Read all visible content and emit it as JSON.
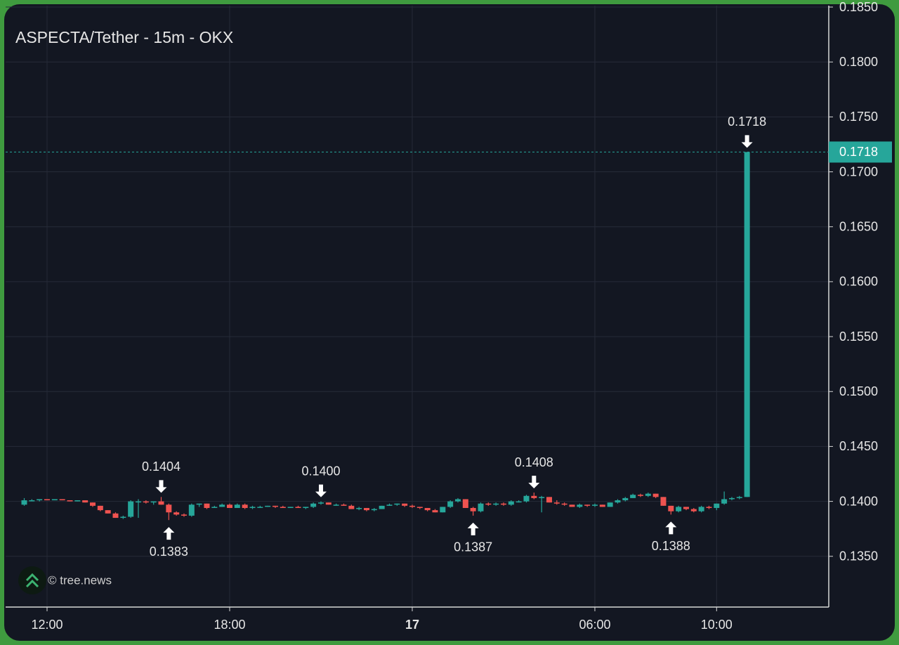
{
  "chart_data": {
    "type": "candlestick",
    "title": "ASPECTA/Tether - 15m - OKX",
    "watermark": "© tree.news",
    "x": [
      "11:15",
      "11:30",
      "11:45",
      "12:00",
      "12:15",
      "12:30",
      "12:45",
      "13:00",
      "13:15",
      "13:30",
      "13:45",
      "14:00",
      "14:15",
      "14:30",
      "14:45",
      "15:00",
      "15:15",
      "15:30",
      "15:45",
      "16:00",
      "16:15",
      "16:30",
      "16:45",
      "17:00",
      "17:15",
      "17:30",
      "17:45",
      "18:00",
      "18:15",
      "18:30",
      "18:45",
      "19:00",
      "19:15",
      "19:30",
      "19:45",
      "20:00",
      "20:15",
      "20:30",
      "20:45",
      "21:00",
      "21:15",
      "21:30",
      "21:45",
      "22:00",
      "22:15",
      "22:30",
      "22:45",
      "23:00",
      "23:15",
      "23:30",
      "23:45",
      "00:00",
      "00:15",
      "00:30",
      "00:45",
      "01:00",
      "01:15",
      "01:30",
      "01:45",
      "02:00",
      "02:15",
      "02:30",
      "02:45",
      "03:00",
      "03:15",
      "03:30",
      "03:45",
      "04:00",
      "04:15",
      "04:30",
      "04:45",
      "05:00",
      "05:15",
      "05:30",
      "05:45",
      "06:00",
      "06:15",
      "06:30",
      "06:45",
      "07:00",
      "07:15",
      "07:30",
      "07:45",
      "08:00",
      "08:15",
      "08:30",
      "08:45",
      "09:00",
      "09:15",
      "09:30",
      "09:45",
      "10:00",
      "10:15",
      "10:30",
      "10:45",
      "11:00"
    ],
    "open": [
      0.1397,
      0.1401,
      0.1401,
      0.1402,
      0.1401,
      0.1402,
      0.1401,
      0.14,
      0.1401,
      0.1399,
      0.1396,
      0.1392,
      0.1389,
      0.1385,
      0.1386,
      0.14,
      0.14,
      0.1399,
      0.14,
      0.1397,
      0.139,
      0.1388,
      0.1387,
      0.1397,
      0.1398,
      0.1394,
      0.1395,
      0.1397,
      0.1394,
      0.1397,
      0.1394,
      0.1395,
      0.1395,
      0.1396,
      0.1395,
      0.1394,
      0.1395,
      0.1394,
      0.1395,
      0.1398,
      0.1399,
      0.1397,
      0.1397,
      0.1396,
      0.1393,
      0.1394,
      0.1392,
      0.1393,
      0.1396,
      0.1397,
      0.1398,
      0.1396,
      0.1395,
      0.1394,
      0.1392,
      0.139,
      0.1395,
      0.14,
      0.1402,
      0.1394,
      0.1391,
      0.1398,
      0.1397,
      0.1398,
      0.1397,
      0.14,
      0.14,
      0.1405,
      0.1403,
      0.1404,
      0.1399,
      0.1398,
      0.1397,
      0.1395,
      0.1397,
      0.1396,
      0.1397,
      0.1395,
      0.1399,
      0.1401,
      0.1403,
      0.1406,
      0.1405,
      0.1407,
      0.1404,
      0.1396,
      0.1391,
      0.1395,
      0.1393,
      0.1391,
      0.1395,
      0.1394,
      0.1398,
      0.1402,
      0.1403,
      0.1404
    ],
    "high": [
      0.1403,
      0.1402,
      0.1402,
      0.1402,
      0.1402,
      0.1402,
      0.1401,
      0.1401,
      0.1401,
      0.1399,
      0.1396,
      0.1392,
      0.139,
      0.1387,
      0.1401,
      0.1402,
      0.1401,
      0.14,
      0.1404,
      0.1398,
      0.1391,
      0.1389,
      0.1398,
      0.1398,
      0.1398,
      0.1396,
      0.1398,
      0.1398,
      0.1398,
      0.1398,
      0.1396,
      0.1396,
      0.1396,
      0.1396,
      0.1396,
      0.1395,
      0.1396,
      0.1395,
      0.1399,
      0.14,
      0.1399,
      0.1398,
      0.1398,
      0.1397,
      0.1395,
      0.1394,
      0.1394,
      0.1396,
      0.1398,
      0.1398,
      0.1398,
      0.1397,
      0.1395,
      0.1394,
      0.1393,
      0.1395,
      0.1401,
      0.1403,
      0.1402,
      0.1395,
      0.1399,
      0.1399,
      0.1399,
      0.1399,
      0.1401,
      0.1401,
      0.1406,
      0.1408,
      0.1405,
      0.1404,
      0.1401,
      0.1399,
      0.1397,
      0.1398,
      0.1397,
      0.1398,
      0.1397,
      0.1399,
      0.1402,
      0.1404,
      0.1407,
      0.1407,
      0.1408,
      0.1407,
      0.1404,
      0.1396,
      0.1396,
      0.1395,
      0.1394,
      0.1396,
      0.1396,
      0.1398,
      0.1409,
      0.1404,
      0.1405,
      0.1718
    ],
    "low": [
      0.1396,
      0.14,
      0.14,
      0.1401,
      0.1401,
      0.1401,
      0.14,
      0.14,
      0.1399,
      0.1395,
      0.1391,
      0.1389,
      0.1385,
      0.1384,
      0.1385,
      0.1385,
      0.1398,
      0.1397,
      0.1397,
      0.1383,
      0.1387,
      0.1386,
      0.1386,
      0.1395,
      0.1393,
      0.1394,
      0.1395,
      0.1394,
      0.1394,
      0.1393,
      0.1393,
      0.1394,
      0.1395,
      0.1394,
      0.1394,
      0.1394,
      0.1394,
      0.1393,
      0.1394,
      0.1397,
      0.1397,
      0.1396,
      0.1396,
      0.1393,
      0.1392,
      0.1391,
      0.1391,
      0.1393,
      0.1396,
      0.1396,
      0.1395,
      0.1394,
      0.1393,
      0.1391,
      0.139,
      0.139,
      0.1394,
      0.1399,
      0.1394,
      0.1387,
      0.139,
      0.1396,
      0.1396,
      0.1396,
      0.1396,
      0.1399,
      0.1399,
      0.1402,
      0.139,
      0.1399,
      0.1397,
      0.1396,
      0.1395,
      0.1394,
      0.1395,
      0.1395,
      0.1395,
      0.1395,
      0.1398,
      0.14,
      0.1403,
      0.1404,
      0.1404,
      0.1403,
      0.1396,
      0.1388,
      0.139,
      0.1392,
      0.139,
      0.139,
      0.1393,
      0.1392,
      0.1397,
      0.1401,
      0.1402,
      0.1404
    ],
    "close": [
      0.1401,
      0.1401,
      0.1402,
      0.1401,
      0.1402,
      0.1401,
      0.14,
      0.1401,
      0.1399,
      0.1396,
      0.1392,
      0.1389,
      0.1385,
      0.1386,
      0.14,
      0.14,
      0.1399,
      0.14,
      0.1397,
      0.139,
      0.1388,
      0.1387,
      0.1397,
      0.1398,
      0.1394,
      0.1395,
      0.1397,
      0.1394,
      0.1397,
      0.1394,
      0.1395,
      0.1395,
      0.1396,
      0.1395,
      0.1394,
      0.1395,
      0.1394,
      0.1395,
      0.1398,
      0.1399,
      0.1397,
      0.1397,
      0.1396,
      0.1393,
      0.1394,
      0.1392,
      0.1393,
      0.1396,
      0.1397,
      0.1398,
      0.1396,
      0.1395,
      0.1394,
      0.1392,
      0.139,
      0.1395,
      0.14,
      0.1402,
      0.1394,
      0.1391,
      0.1398,
      0.1397,
      0.1398,
      0.1397,
      0.14,
      0.14,
      0.1405,
      0.1403,
      0.1404,
      0.1399,
      0.1398,
      0.1397,
      0.1395,
      0.1397,
      0.1396,
      0.1397,
      0.1395,
      0.1399,
      0.1401,
      0.1403,
      0.1406,
      0.1405,
      0.1407,
      0.1404,
      0.1396,
      0.1391,
      0.1395,
      0.1393,
      0.1391,
      0.1395,
      0.1394,
      0.1398,
      0.1402,
      0.1403,
      0.1404,
      0.1718
    ],
    "up_color": "#26a69a",
    "down_color": "#ef5350",
    "ylim": [
      0.13038,
      0.18513
    ],
    "yticks": [
      {
        "value": 0.135,
        "label": "0.1350"
      },
      {
        "value": 0.14,
        "label": "0.1400"
      },
      {
        "value": 0.145,
        "label": "0.1450"
      },
      {
        "value": 0.15,
        "label": "0.1500"
      },
      {
        "value": 0.155,
        "label": "0.1550"
      },
      {
        "value": 0.16,
        "label": "0.1600"
      },
      {
        "value": 0.165,
        "label": "0.1650"
      },
      {
        "value": 0.17,
        "label": "0.1700"
      },
      {
        "value": 0.175,
        "label": "0.1750"
      },
      {
        "value": 0.18,
        "label": "0.1800"
      },
      {
        "value": 0.185,
        "label": "0.1850"
      }
    ],
    "xticks": [
      "12:00",
      "18:00",
      {
        "value": "00:00",
        "label": "17"
      },
      "06:00",
      "10:00"
    ],
    "grid": true,
    "annotations": [
      {
        "x": "15:45",
        "value": 0.1404,
        "label": "0.1404",
        "position": "above"
      },
      {
        "x": "16:00",
        "value": 0.1383,
        "label": "0.1383",
        "position": "below"
      },
      {
        "x": "21:00",
        "value": 0.14,
        "label": "0.1400",
        "position": "above"
      },
      {
        "x": "02:00",
        "value": 0.1387,
        "label": "0.1387",
        "position": "below"
      },
      {
        "x": "04:00",
        "value": 0.1408,
        "label": "0.1408",
        "position": "above"
      },
      {
        "x": "08:30",
        "value": 0.1388,
        "label": "0.1388",
        "position": "below"
      },
      {
        "x": "11:00",
        "value": 0.1718,
        "label": "0.1718",
        "position": "above"
      }
    ],
    "last_price": {
      "value": 0.1718,
      "label": "0.1718"
    }
  }
}
